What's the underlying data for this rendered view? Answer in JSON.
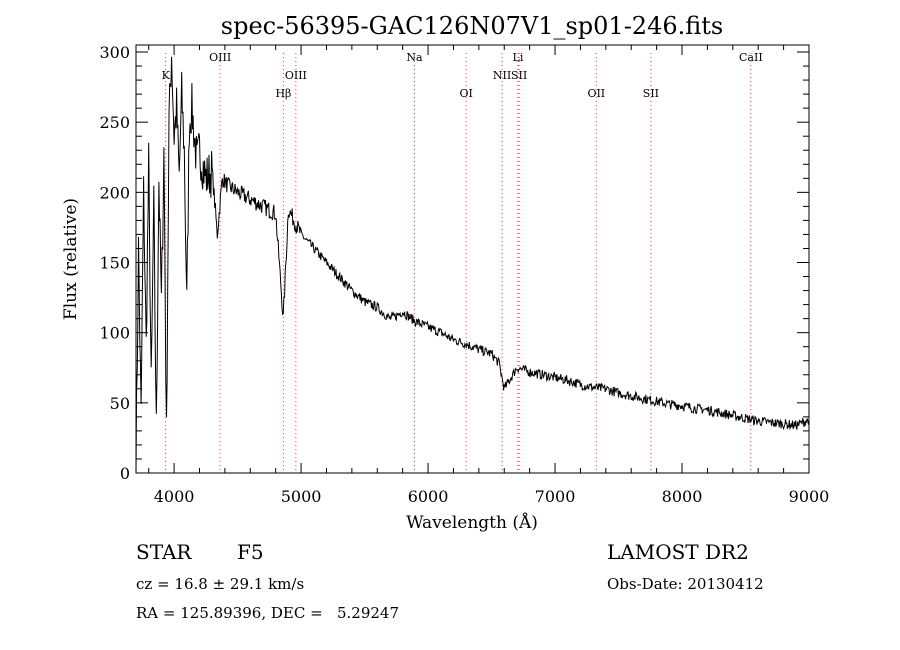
{
  "chart_data": {
    "type": "line",
    "title": "spec-56395-GAC126N07V1_sp01-246.fits",
    "xlabel": "Wavelength (Å)",
    "ylabel": "Flux (relative)",
    "xlim": [
      3700,
      9000
    ],
    "ylim": [
      0,
      305
    ],
    "xticks": [
      4000,
      5000,
      6000,
      7000,
      8000,
      9000
    ],
    "yticks": [
      0,
      50,
      100,
      150,
      200,
      250,
      300
    ],
    "grid": false,
    "spectral_lines": [
      {
        "name": "K",
        "x": 3934,
        "row": 1
      },
      {
        "name": "OIII",
        "x": 4363,
        "row": 0
      },
      {
        "name": "Hβ",
        "x": 4861,
        "row": 2
      },
      {
        "name": "OIII",
        "x": 4959,
        "row": 1
      },
      {
        "name": "Na",
        "x": 5893,
        "row": 0
      },
      {
        "name": "OI",
        "x": 6300,
        "row": 2
      },
      {
        "name": "Li",
        "x": 6708,
        "row": 0
      },
      {
        "name": "NII",
        "x": 6583,
        "row": 1
      },
      {
        "name": "SII",
        "x": 6717,
        "row": 1
      },
      {
        "name": "OII",
        "x": 7325,
        "row": 2
      },
      {
        "name": "SII",
        "x": 7755,
        "row": 2
      },
      {
        "name": "CaII",
        "x": 8542,
        "row": 0
      }
    ],
    "series": [
      {
        "x": [
          3700,
          3720,
          3740,
          3760,
          3780,
          3800,
          3820,
          3840,
          3860,
          3880,
          3900,
          3920,
          3940,
          3960,
          3980,
          4000,
          4020,
          4040,
          4060,
          4080,
          4100,
          4120,
          4140,
          4160,
          4180,
          4200,
          4250,
          4300,
          4340,
          4380,
          4420,
          4500,
          4600,
          4700,
          4800,
          4860,
          4900,
          5000,
          5100,
          5200,
          5300,
          5400,
          5500,
          5600,
          5700,
          5750,
          5800,
          5900,
          6000,
          6100,
          6200,
          6300,
          6400,
          6500,
          6560,
          6600,
          6700,
          6800,
          6900,
          7000,
          7100,
          7200,
          7300,
          7400,
          7500,
          7600,
          7700,
          7800,
          7900,
          8000,
          8100,
          8200,
          8300,
          8400,
          8500,
          8600,
          8700,
          8800,
          8900,
          9000
        ],
        "y": [
          5,
          160,
          40,
          200,
          90,
          220,
          60,
          190,
          30,
          210,
          120,
          230,
          25,
          250,
          300,
          240,
          260,
          210,
          270,
          230,
          120,
          250,
          260,
          240,
          220,
          230,
          210,
          215,
          170,
          210,
          205,
          200,
          195,
          190,
          185,
          110,
          188,
          170,
          160,
          150,
          140,
          130,
          122,
          118,
          110,
          112,
          115,
          108,
          104,
          100,
          95,
          92,
          88,
          85,
          78,
          60,
          75,
          72,
          70,
          68,
          66,
          63,
          61,
          60,
          57,
          55,
          53,
          51,
          49,
          48,
          46,
          45,
          43,
          41,
          39,
          37,
          36,
          35,
          34,
          38
        ]
      }
    ]
  },
  "info": {
    "object_class": "STAR",
    "subclass": "F5",
    "survey": "LAMOST DR2",
    "cz": "cz = 16.8 ± 29.1 km/s",
    "obs_date": "Obs-Date: 20130412",
    "coords": "RA = 125.89396, DEC =   5.29247"
  }
}
